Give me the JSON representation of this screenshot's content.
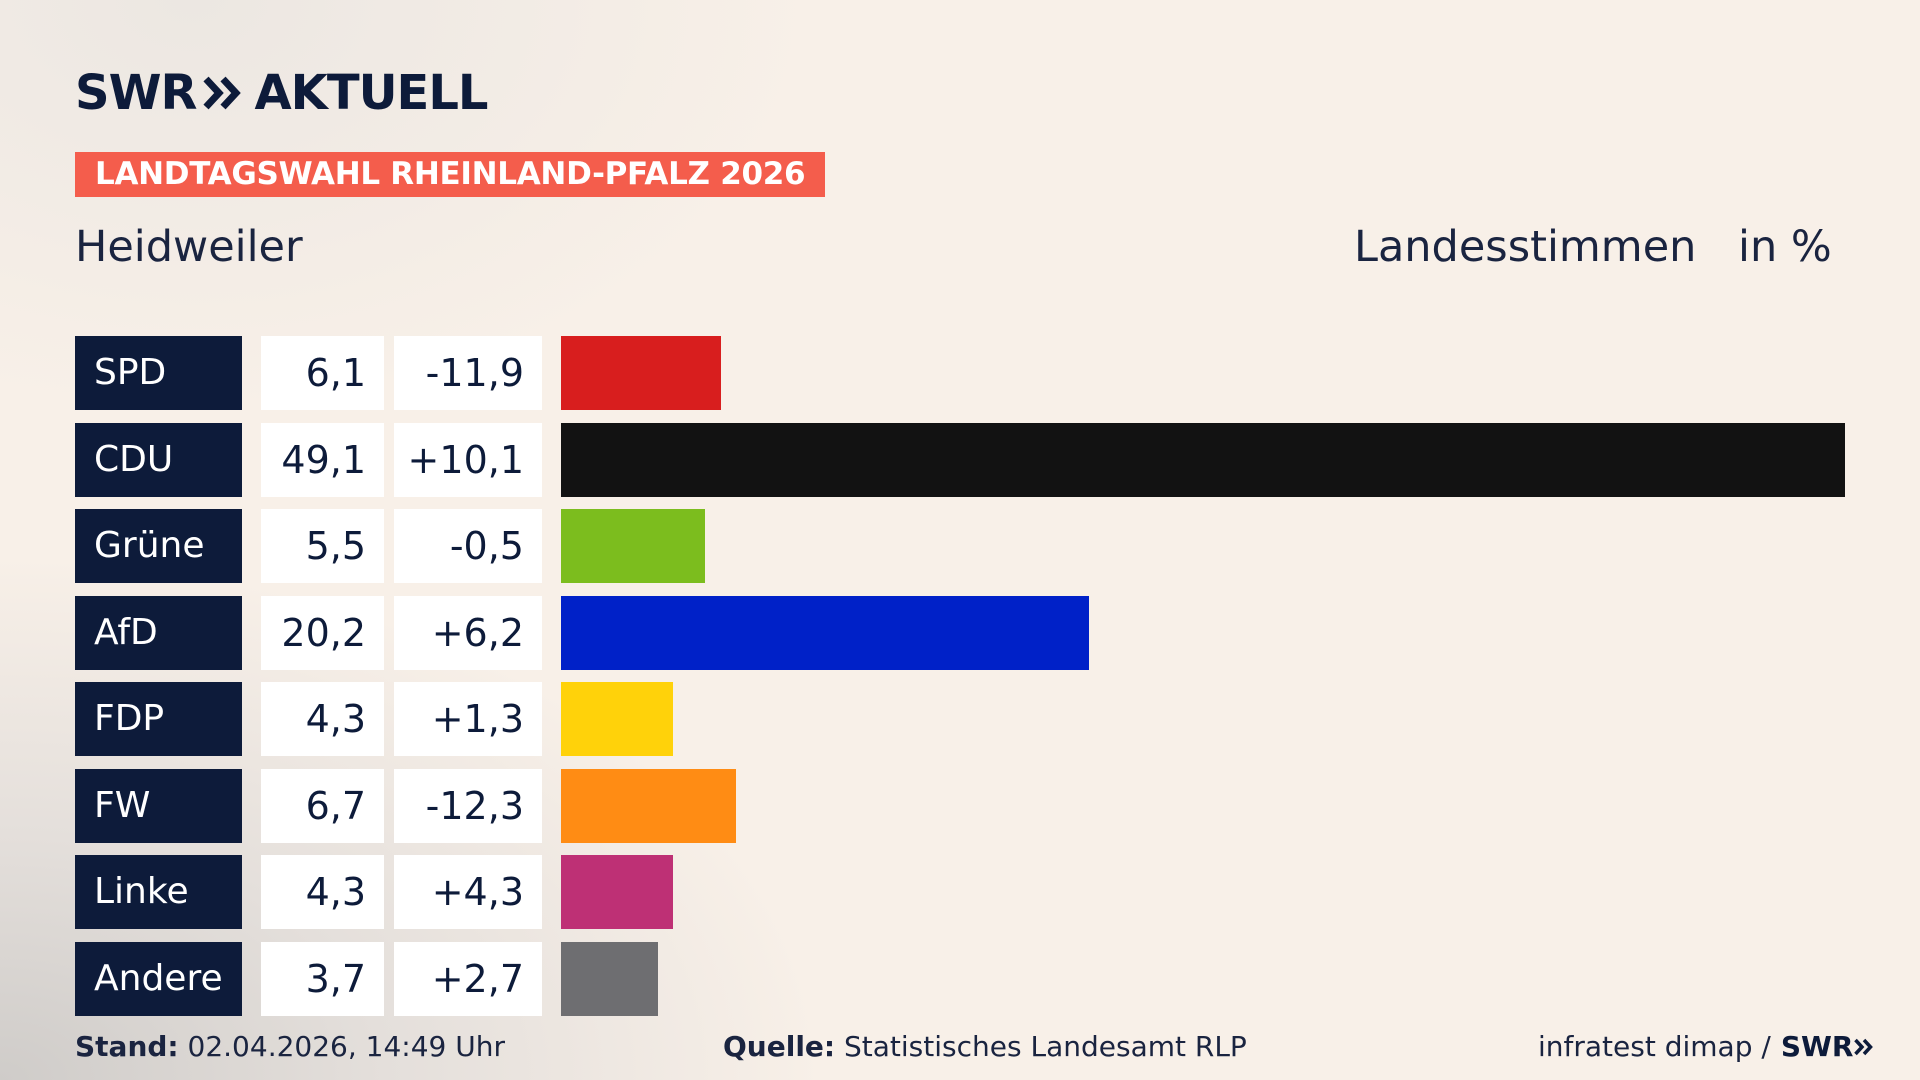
{
  "brand": {
    "swr": "SWR",
    "aktuell": "AKTUELL"
  },
  "badge": "LANDTAGSWAHL RHEINLAND-PFALZ 2026",
  "place": "Heidweiler",
  "header_stimmen": "Landesstimmen",
  "header_unit": "in %",
  "chart_data": {
    "type": "bar",
    "orientation": "horizontal",
    "title": "LANDTAGSWAHL RHEINLAND-PFALZ 2026",
    "subtitle": "Heidweiler",
    "categories": [
      "SPD",
      "CDU",
      "Grüne",
      "AfD",
      "FDP",
      "FW",
      "Linke",
      "Andere"
    ],
    "values": [
      6.1,
      49.1,
      5.5,
      20.2,
      4.3,
      6.7,
      4.3,
      3.7
    ],
    "value_labels": [
      "6,1",
      "49,1",
      "5,5",
      "20,2",
      "4,3",
      "6,7",
      "4,3",
      "3,7"
    ],
    "diff_labels": [
      "-11,9",
      "+10,1",
      "-0,5",
      "+6,2",
      "+1,3",
      "-12,3",
      "+4,3",
      "+2,7"
    ],
    "colors": [
      "#d81e1e",
      "#121212",
      "#7cbd1e",
      "#0021c8",
      "#ffd20a",
      "#ff8c14",
      "#be3075",
      "#6e6e71"
    ],
    "xlim": [
      0,
      49.1
    ],
    "ylabel": "Landesstimmen",
    "unit": "in %",
    "grid": false,
    "legend": "none"
  },
  "footer": {
    "stand_label": "Stand:",
    "stand_value": "02.04.2026, 14:49 Uhr",
    "quelle_label": "Quelle:",
    "quelle_value": "Statistisches Landesamt RLP",
    "credit": "infratest dimap /",
    "swr_small": "SWR"
  },
  "icons": {
    "logo_chevron": "double-chevron-icon"
  }
}
